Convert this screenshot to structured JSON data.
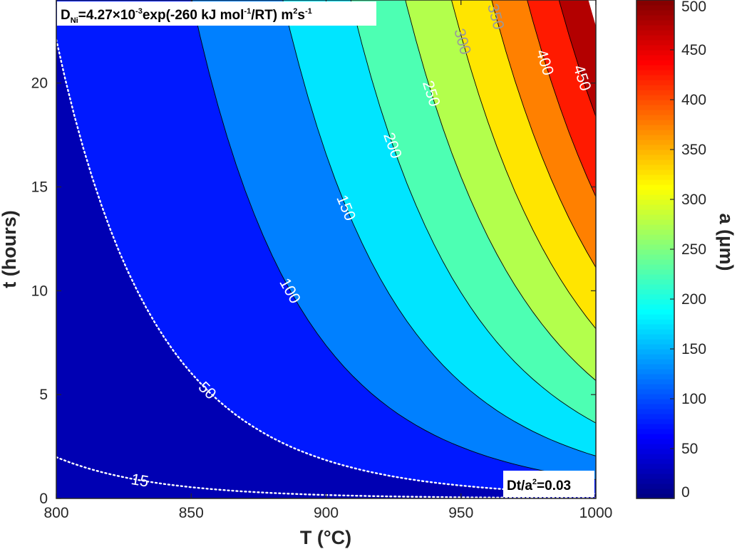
{
  "chart_data": {
    "type": "contour",
    "title": "",
    "xlabel": "T (°C)",
    "ylabel": "t (hours)",
    "colorbar_label": "a (μm)",
    "xlim": [
      800,
      1000
    ],
    "ylim": [
      0,
      24
    ],
    "x_ticks": [
      "800",
      "850",
      "900",
      "950",
      "1000"
    ],
    "y_ticks": [
      "0",
      "5",
      "10",
      "15",
      "20"
    ],
    "colorbar_range": [
      0,
      500
    ],
    "colorbar_ticks": [
      "0",
      "50",
      "100",
      "150",
      "200",
      "250",
      "300",
      "350",
      "400",
      "450",
      "500"
    ],
    "colormap": "jet",
    "filled_levels": [
      0,
      50,
      100,
      150,
      200,
      250,
      300,
      350,
      400,
      450,
      500
    ],
    "contour_levels": [
      {
        "value": 100,
        "label": "100"
      },
      {
        "value": 150,
        "label": "150"
      },
      {
        "value": 200,
        "label": "200"
      },
      {
        "value": 250,
        "label": "250"
      },
      {
        "value": 300,
        "label": "300"
      },
      {
        "value": 350,
        "label": "350"
      },
      {
        "value": 400,
        "label": "400"
      },
      {
        "value": 450,
        "label": "450"
      }
    ],
    "dotted_levels": [
      {
        "value": 50,
        "label": "50"
      },
      {
        "value": 15,
        "label": "15"
      }
    ],
    "model": {
      "D0_m2_per_s": 0.00427,
      "Q_kJ_per_mol": 260,
      "criterion_Dt_over_a2": 0.03
    },
    "annotations": {
      "diffusion_prefix": "D",
      "diffusion_sub": "Ni",
      "diffusion_mid1": "=4.27×10",
      "diffusion_sup1": "-3",
      "diffusion_mid2": "exp(-260 kJ mol",
      "diffusion_sup2": "-1",
      "diffusion_mid3": "/RT) m",
      "diffusion_sup3": "2",
      "diffusion_mid4": "s",
      "diffusion_sup4": "-1",
      "criterion_prefix": "Dt/a",
      "criterion_sup": "2",
      "criterion_suffix": "=0.03"
    }
  }
}
